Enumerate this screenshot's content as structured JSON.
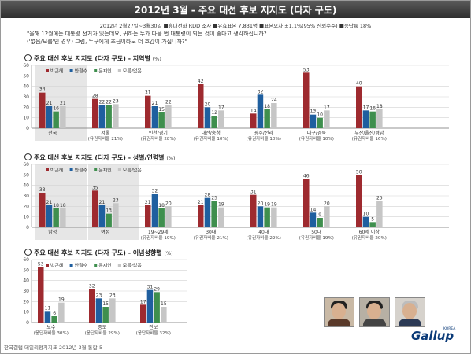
{
  "title": "2012년 3월 - 주요 대선 후보 지지도 (다자 구도)",
  "survey_info": "2012년 2월27일~3월30일 ■휴대전화 RDD 조사 ■유효표본 7,831명 ■표본오차 ±1.1%(95% 신뢰수준) ■응답률 18%",
  "question_line1": "\"올해 12월에는 대통령 선거가 있는데요, 귀하는 누가 다음 번 대통령이 되는 것이 좋다고 생각하십니까?",
  "question_line2": "('없음/모름'인 경우) 그럼, 누구에게 조금이라도 더 호감이 가십니까?\"",
  "footer": "한국갤럽 데일리정치지표 2012년 3월 통합-5",
  "logo": "Gallup",
  "logo_sup": "KOREA",
  "colors": {
    "park": "#9e2a2f",
    "ahn": "#1f5f9f",
    "moon": "#3f8f4e",
    "none": "#c6c6c6",
    "shade": "#e6e6e6"
  },
  "photos": [
    "person-photo-park",
    "person-photo-moon",
    "person-photo-ahn"
  ],
  "chart_data": [
    {
      "type": "bar",
      "title": "주요 대선 후보 지지도 (다자 구도) - 지역별",
      "unit": "(%)",
      "ylim": [
        0,
        60
      ],
      "yticks": [
        0,
        10,
        20,
        30,
        40,
        50,
        60
      ],
      "legend": [
        "박근혜",
        "안철수",
        "문재인",
        "모름/없음"
      ],
      "categories": [
        {
          "label": "전국",
          "sub": ""
        },
        {
          "label": "서울",
          "sub": "(유권자비율 21%)"
        },
        {
          "label": "인천/경기",
          "sub": "(유권자비율 28%)"
        },
        {
          "label": "대전/충청",
          "sub": "(유권자비율 10%)"
        },
        {
          "label": "광주/전라",
          "sub": "(유권자비율 10%)"
        },
        {
          "label": "대구/경북",
          "sub": "(유권자비율 10%)"
        },
        {
          "label": "부산/울산/경남",
          "sub": "(유권자비율 16%)"
        }
      ],
      "shaded": [
        0
      ],
      "series": [
        {
          "name": "박근혜",
          "values": [
            34,
            28,
            31,
            42,
            14,
            53,
            40
          ]
        },
        {
          "name": "안철수",
          "values": [
            21,
            22,
            21,
            20,
            32,
            13,
            17
          ]
        },
        {
          "name": "문재인",
          "values": [
            16,
            22,
            15,
            12,
            18,
            10,
            16
          ]
        },
        {
          "name": "모름/없음",
          "values": [
            21,
            23,
            22,
            17,
            24,
            17,
            18
          ]
        }
      ]
    },
    {
      "type": "bar",
      "title": "주요 대선 후보 지지도 (다자 구도) - 성별/연령별",
      "unit": "(%)",
      "ylim": [
        0,
        60
      ],
      "yticks": [
        0,
        10,
        20,
        30,
        40,
        50,
        60
      ],
      "legend": [
        "박근혜",
        "안철수",
        "문재인",
        "모름/없음"
      ],
      "categories": [
        {
          "label": "남성",
          "sub": ""
        },
        {
          "label": "여성",
          "sub": ""
        },
        {
          "label": "19~29세",
          "sub": "(유권자비율 19%)"
        },
        {
          "label": "30대",
          "sub": "(유권자비율 21%)"
        },
        {
          "label": "40대",
          "sub": "(유권자비율 22%)"
        },
        {
          "label": "50대",
          "sub": "(유권자비율 19%)"
        },
        {
          "label": "60세 이상",
          "sub": "(유권자비율 20%)"
        }
      ],
      "shaded": [
        0,
        1
      ],
      "series": [
        {
          "name": "박근혜",
          "values": [
            33,
            35,
            21,
            21,
            31,
            46,
            50
          ]
        },
        {
          "name": "안철수",
          "values": [
            21,
            21,
            32,
            28,
            20,
            14,
            10
          ]
        },
        {
          "name": "문재인",
          "values": [
            18,
            13,
            18,
            25,
            19,
            9,
            5
          ]
        },
        {
          "name": "모름/없음",
          "values": [
            18,
            23,
            20,
            19,
            19,
            20,
            25
          ]
        }
      ]
    },
    {
      "type": "bar",
      "title": "주요 대선 후보 지지도 (다자 구도) - 이념성향별",
      "unit": "(%)",
      "ylim": [
        0,
        60
      ],
      "yticks": [
        0,
        10,
        20,
        30,
        40,
        50,
        60
      ],
      "legend": [
        "박근혜",
        "안철수",
        "문재인",
        "모름/없음"
      ],
      "categories": [
        {
          "label": "보수",
          "sub": "(응답자비율 30%)"
        },
        {
          "label": "중도",
          "sub": "(응답자비율 29%)"
        },
        {
          "label": "진보",
          "sub": "(응답자비율 32%)"
        }
      ],
      "shaded": [],
      "series": [
        {
          "name": "박근혜",
          "values": [
            53,
            32,
            17
          ]
        },
        {
          "name": "안철수",
          "values": [
            11,
            23,
            31
          ]
        },
        {
          "name": "문재인",
          "values": [
            6,
            15,
            29
          ]
        },
        {
          "name": "모름/없음",
          "values": [
            19,
            23,
            15
          ]
        }
      ]
    }
  ]
}
